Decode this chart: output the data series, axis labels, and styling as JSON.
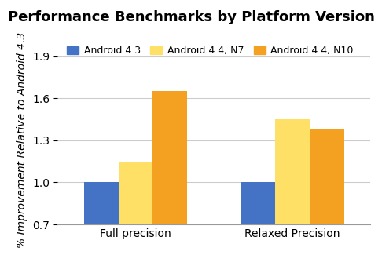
{
  "title": "Performance Benchmarks by Platform Version",
  "ylabel": "% Improvement Relative to Android 4.3",
  "categories": [
    "Full precision",
    "Relaxed Precision"
  ],
  "series": [
    {
      "label": "Android 4.3",
      "color": "#4472C4",
      "values": [
        1.0,
        1.0
      ]
    },
    {
      "label": "Android 4.4, N7",
      "color": "#FFE066",
      "values": [
        1.15,
        1.45
      ]
    },
    {
      "label": "Android 4.4, N10",
      "color": "#F4A020",
      "values": [
        1.65,
        1.38
      ]
    }
  ],
  "ylim": [
    0.7,
    1.9
  ],
  "yticks": [
    0.7,
    1.0,
    1.3,
    1.6,
    1.9
  ],
  "bar_width": 0.22,
  "background_color": "#ffffff",
  "grid_color": "#cccccc",
  "title_fontsize": 13,
  "legend_fontsize": 9,
  "ylabel_fontsize": 10,
  "tick_fontsize": 10
}
